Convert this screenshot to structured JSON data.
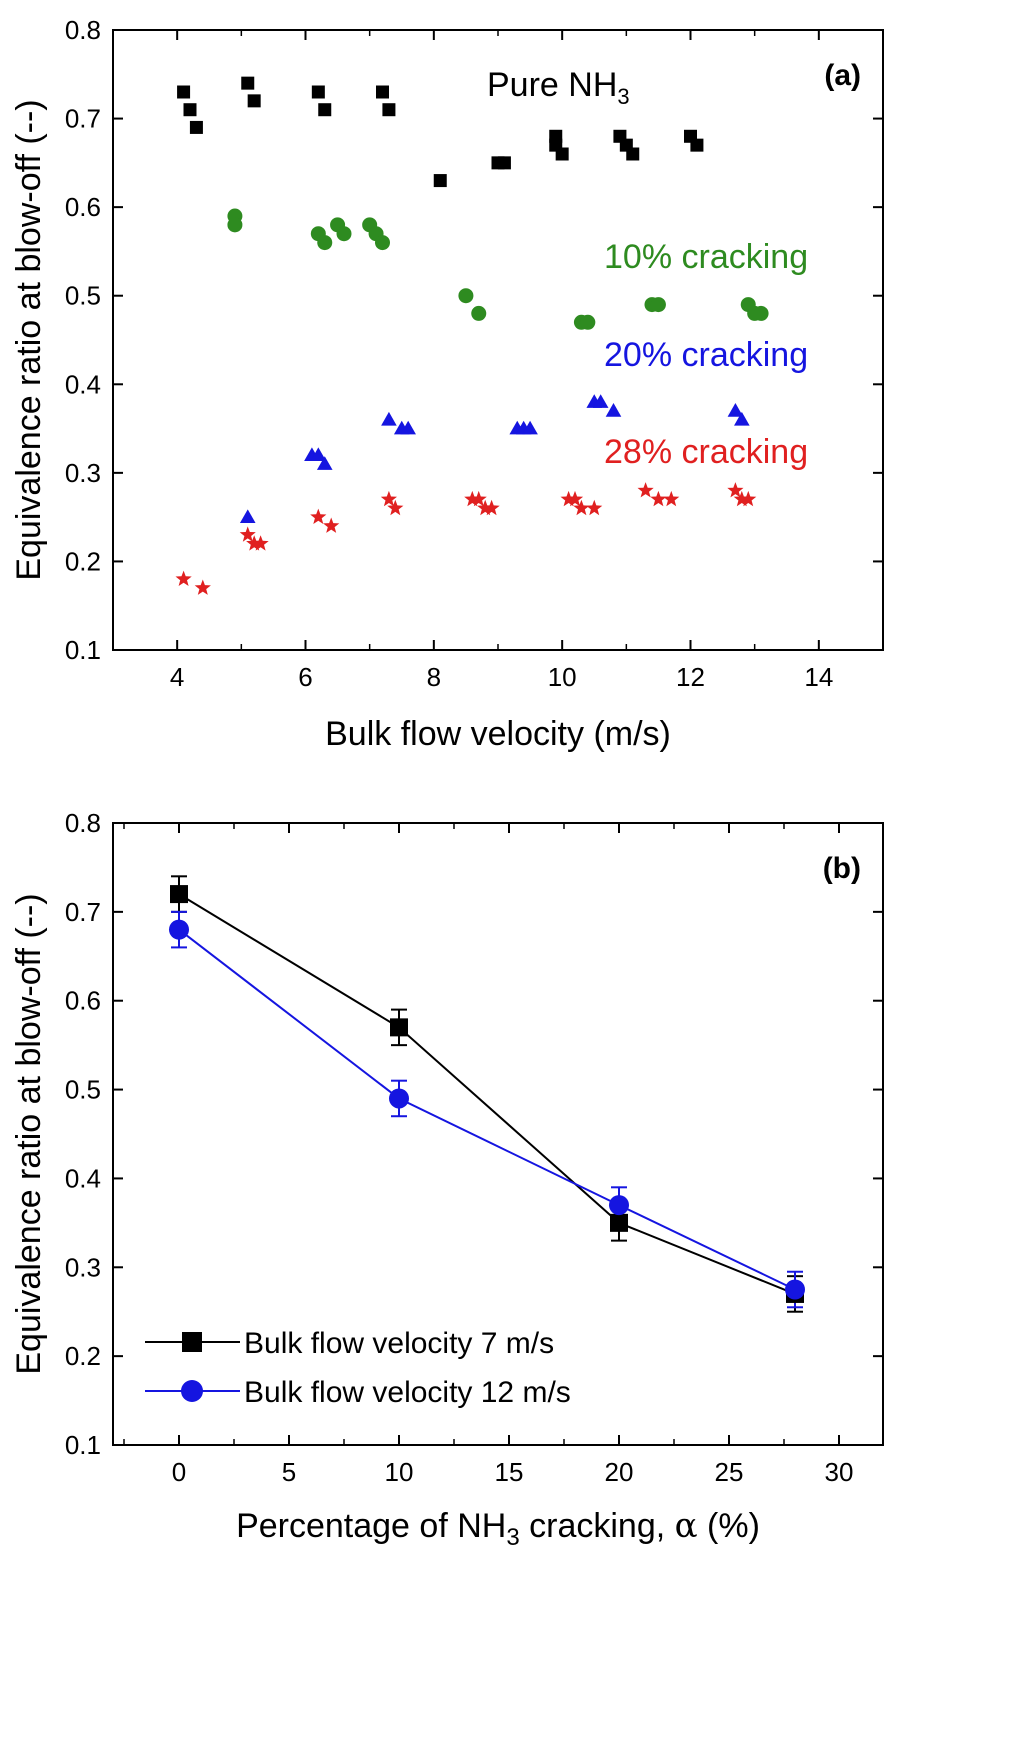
{
  "chart_data": [
    {
      "id": "a",
      "type": "scatter",
      "panel_label": "(a)",
      "xlabel": "Bulk flow velocity (m/s)",
      "ylabel": "Equivalence ratio at blow-off (--)",
      "xlim": [
        3,
        15
      ],
      "ylim": [
        0.1,
        0.8
      ],
      "xticks": [
        "4",
        "6",
        "8",
        "10",
        "12",
        "14"
      ],
      "yticks": [
        "0.1",
        "0.2",
        "0.3",
        "0.4",
        "0.5",
        "0.6",
        "0.7",
        "0.8"
      ],
      "series": [
        {
          "name": "Pure NH3",
          "label_main": "Pure NH",
          "label_sub": "3",
          "color": "#000000",
          "marker": "square",
          "points": [
            [
              4.1,
              0.73
            ],
            [
              4.2,
              0.71
            ],
            [
              4.3,
              0.69
            ],
            [
              5.1,
              0.74
            ],
            [
              5.2,
              0.72
            ],
            [
              6.2,
              0.73
            ],
            [
              6.3,
              0.71
            ],
            [
              7.2,
              0.73
            ],
            [
              7.3,
              0.71
            ],
            [
              8.1,
              0.63
            ],
            [
              9.0,
              0.65
            ],
            [
              9.1,
              0.65
            ],
            [
              9.9,
              0.68
            ],
            [
              9.9,
              0.67
            ],
            [
              10.0,
              0.66
            ],
            [
              10.9,
              0.68
            ],
            [
              11.0,
              0.67
            ],
            [
              11.1,
              0.66
            ],
            [
              12.0,
              0.68
            ],
            [
              12.1,
              0.67
            ]
          ]
        },
        {
          "name": "10% cracking",
          "label_main": "10% cracking",
          "label_sub": "",
          "color": "#2e8b20",
          "marker": "circle",
          "points": [
            [
              4.9,
              0.59
            ],
            [
              4.9,
              0.58
            ],
            [
              6.2,
              0.57
            ],
            [
              6.3,
              0.56
            ],
            [
              6.5,
              0.58
            ],
            [
              6.6,
              0.57
            ],
            [
              7.0,
              0.58
            ],
            [
              7.1,
              0.57
            ],
            [
              7.2,
              0.56
            ],
            [
              8.5,
              0.5
            ],
            [
              8.7,
              0.48
            ],
            [
              10.3,
              0.47
            ],
            [
              10.4,
              0.47
            ],
            [
              11.4,
              0.49
            ],
            [
              11.5,
              0.49
            ],
            [
              12.9,
              0.49
            ],
            [
              13.0,
              0.48
            ],
            [
              13.1,
              0.48
            ]
          ]
        },
        {
          "name": "20% cracking",
          "label_main": "20% cracking",
          "label_sub": "",
          "color": "#1515e0",
          "marker": "triangle",
          "points": [
            [
              5.1,
              0.25
            ],
            [
              6.1,
              0.32
            ],
            [
              6.2,
              0.32
            ],
            [
              6.3,
              0.31
            ],
            [
              7.3,
              0.36
            ],
            [
              7.5,
              0.35
            ],
            [
              7.6,
              0.35
            ],
            [
              9.3,
              0.35
            ],
            [
              9.4,
              0.35
            ],
            [
              9.5,
              0.35
            ],
            [
              10.5,
              0.38
            ],
            [
              10.6,
              0.38
            ],
            [
              10.8,
              0.37
            ],
            [
              12.7,
              0.37
            ],
            [
              12.8,
              0.36
            ]
          ]
        },
        {
          "name": "28% cracking",
          "label_main": "28% cracking",
          "label_sub": "",
          "color": "#e02020",
          "marker": "star",
          "points": [
            [
              4.1,
              0.18
            ],
            [
              4.4,
              0.17
            ],
            [
              5.1,
              0.23
            ],
            [
              5.2,
              0.22
            ],
            [
              5.3,
              0.22
            ],
            [
              6.2,
              0.25
            ],
            [
              6.4,
              0.24
            ],
            [
              7.3,
              0.27
            ],
            [
              7.4,
              0.26
            ],
            [
              8.6,
              0.27
            ],
            [
              8.7,
              0.27
            ],
            [
              8.8,
              0.26
            ],
            [
              8.9,
              0.26
            ],
            [
              10.1,
              0.27
            ],
            [
              10.2,
              0.27
            ],
            [
              10.3,
              0.26
            ],
            [
              10.5,
              0.26
            ],
            [
              11.3,
              0.28
            ],
            [
              11.5,
              0.27
            ],
            [
              11.7,
              0.27
            ],
            [
              12.7,
              0.28
            ],
            [
              12.8,
              0.27
            ],
            [
              12.9,
              0.27
            ]
          ]
        }
      ]
    },
    {
      "id": "b",
      "type": "line",
      "panel_label": "(b)",
      "xlabel_main": "Percentage of NH",
      "xlabel_sub": "3",
      "xlabel_rest": " cracking, ",
      "xlabel_alpha": "α",
      "xlabel_unit": " (%)",
      "ylabel": "Equivalence ratio at blow-off (--)",
      "xlim": [
        -3,
        32
      ],
      "ylim": [
        0.1,
        0.8
      ],
      "xticks": [
        "0",
        "5",
        "10",
        "15",
        "20",
        "25",
        "30"
      ],
      "yticks": [
        "0.1",
        "0.2",
        "0.3",
        "0.4",
        "0.5",
        "0.6",
        "0.7",
        "0.8"
      ],
      "series": [
        {
          "name": "Bulk flow velocity 7 m/s",
          "color": "#000000",
          "marker": "square",
          "x": [
            0,
            10,
            20,
            28
          ],
          "y": [
            0.72,
            0.57,
            0.35,
            0.27
          ],
          "err": [
            0.02,
            0.02,
            0.02,
            0.02
          ]
        },
        {
          "name": "Bulk flow velocity 12 m/s",
          "color": "#1515e0",
          "marker": "circle",
          "x": [
            0,
            10,
            20,
            28
          ],
          "y": [
            0.68,
            0.49,
            0.37,
            0.275
          ],
          "err": [
            0.02,
            0.02,
            0.02,
            0.02
          ]
        }
      ]
    }
  ]
}
